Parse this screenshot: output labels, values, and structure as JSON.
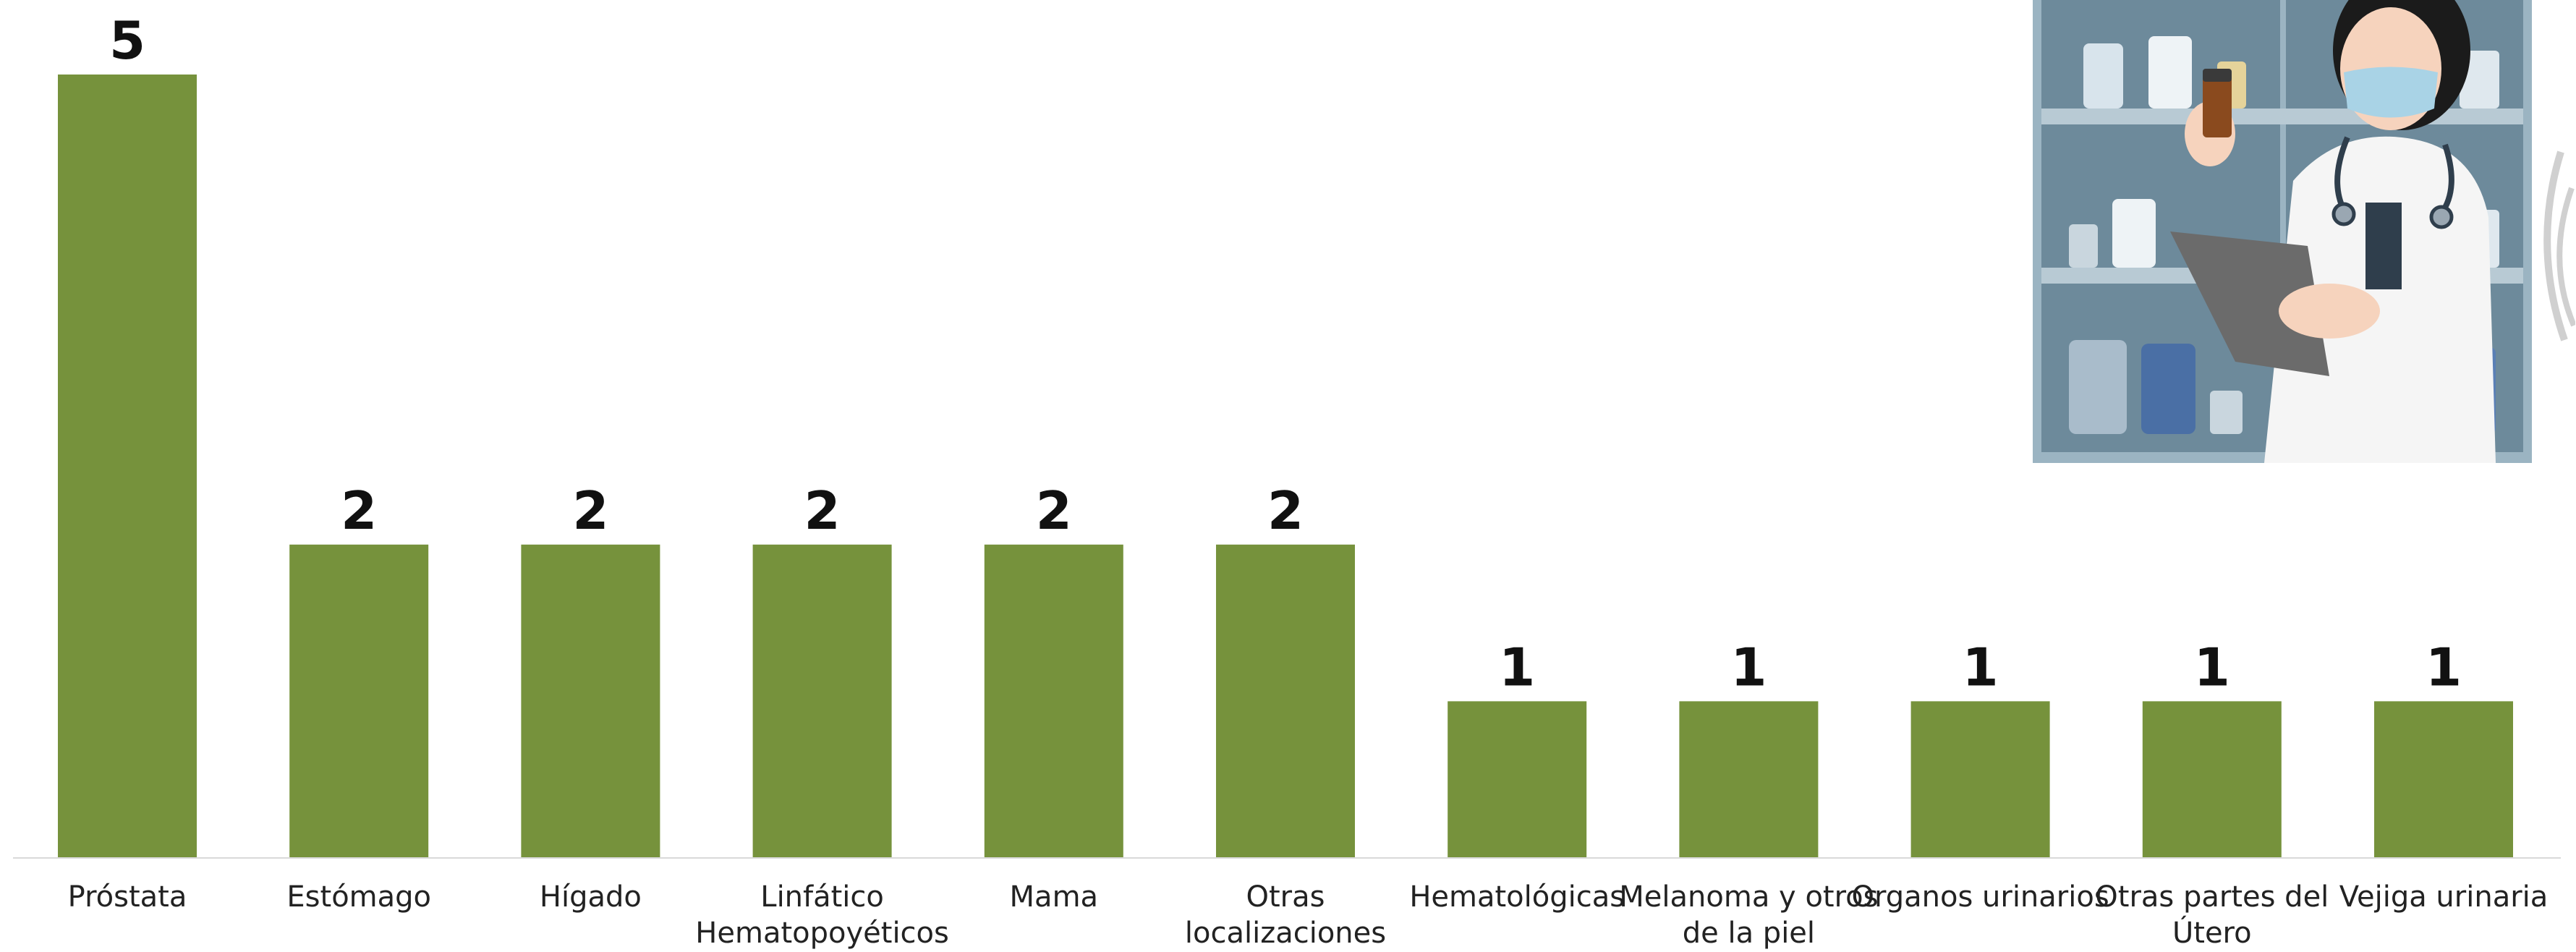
{
  "chart_data": {
    "type": "bar",
    "title": "",
    "xlabel": "",
    "ylabel": "",
    "categories": [
      "Próstata",
      "Estómago",
      "Hígado",
      "Linfático Hematopoyéticos",
      "Mama",
      "Otras localizaciones",
      "Hematológicas",
      "Melanoma y otros de la piel",
      "Organos urinarios",
      "Otras partes del Útero",
      "Vejiga urinaria"
    ],
    "category_label_lines": [
      [
        "Próstata"
      ],
      [
        "Estómago"
      ],
      [
        "Hígado"
      ],
      [
        "Linfático",
        "Hematopoyéticos"
      ],
      [
        "Mama"
      ],
      [
        "Otras",
        "localizaciones"
      ],
      [
        "Hematológicas"
      ],
      [
        "Melanoma y otros",
        "de la piel"
      ],
      [
        "Organos urinarios"
      ],
      [
        "Otras partes del",
        "Útero"
      ],
      [
        "Vejiga urinaria"
      ]
    ],
    "values": [
      5,
      2,
      2,
      2,
      2,
      2,
      1,
      1,
      1,
      1,
      1
    ],
    "ylim": [
      0,
      5
    ],
    "grid": false,
    "legend": "none",
    "bar_color": "#76923c",
    "axis_color": "#d9d9d9",
    "label_color": "#222222",
    "value_color": "#111111"
  },
  "illustration": {
    "icon": "doctor-with-medicine-bottle-icon",
    "cabinet_color": "#7d9aaa",
    "coat_color": "#f5f5f5",
    "mask_color": "#a9d3e6"
  }
}
